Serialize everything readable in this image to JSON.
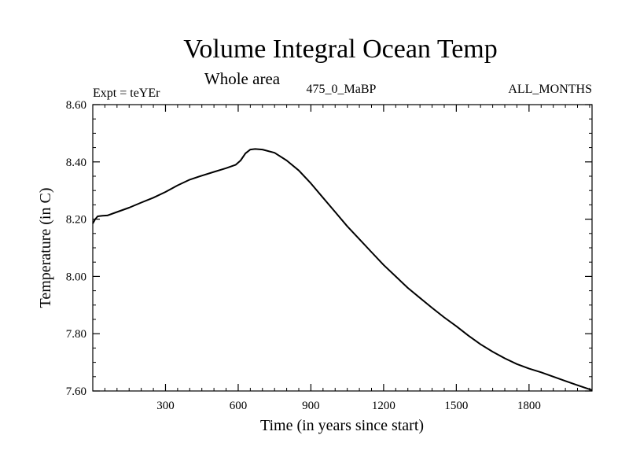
{
  "chart_data": {
    "type": "line",
    "title": "Volume Integral Ocean Temp",
    "subtitle": "Whole area",
    "header_left": "Expt = teYEr",
    "header_center": "475_0_MaBP",
    "header_right": "ALL_MONTHS",
    "xlabel": "Time (in years since start)",
    "ylabel": "Temperature (in C)",
    "xlim": [
      0,
      2060
    ],
    "ylim": [
      7.6,
      8.6
    ],
    "x_ticks": [
      300,
      600,
      900,
      1200,
      1500,
      1800
    ],
    "x_tick_labels": [
      "300",
      "600",
      "900",
      "1200",
      "1500",
      "1800"
    ],
    "y_ticks": [
      7.6,
      7.8,
      8.0,
      8.2,
      8.4,
      8.6
    ],
    "y_tick_labels": [
      "7.60",
      "7.80",
      "8.00",
      "8.20",
      "8.40",
      "8.60"
    ],
    "series": [
      {
        "name": "Volume Integral Ocean Temp",
        "x": [
          0,
          10,
          20,
          40,
          60,
          100,
          150,
          200,
          250,
          300,
          350,
          400,
          450,
          500,
          550,
          590,
          610,
          630,
          650,
          670,
          700,
          750,
          800,
          850,
          900,
          950,
          1000,
          1050,
          1100,
          1150,
          1200,
          1250,
          1300,
          1350,
          1400,
          1450,
          1500,
          1550,
          1600,
          1650,
          1700,
          1750,
          1800,
          1850,
          1900,
          1950,
          2000,
          2060
        ],
        "values": [
          8.185,
          8.2,
          8.21,
          8.212,
          8.213,
          8.225,
          8.24,
          8.258,
          8.275,
          8.295,
          8.318,
          8.338,
          8.352,
          8.365,
          8.378,
          8.39,
          8.405,
          8.43,
          8.443,
          8.445,
          8.443,
          8.432,
          8.405,
          8.37,
          8.325,
          8.275,
          8.225,
          8.175,
          8.13,
          8.085,
          8.04,
          8.0,
          7.96,
          7.925,
          7.89,
          7.857,
          7.826,
          7.793,
          7.763,
          7.737,
          7.714,
          7.694,
          7.678,
          7.665,
          7.65,
          7.635,
          7.62,
          7.603
        ]
      }
    ]
  }
}
